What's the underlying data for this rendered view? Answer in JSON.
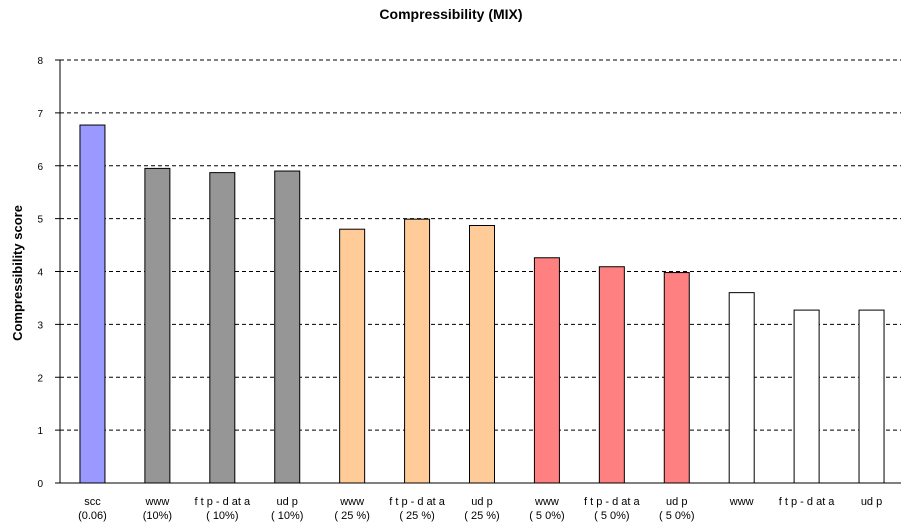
{
  "chart_data": {
    "type": "bar",
    "title": "Compressibility (MIX)",
    "xlabel": "",
    "ylabel": "Compressibility score",
    "ylim": [
      0,
      8
    ],
    "yticks": [
      0,
      1,
      2,
      3,
      4,
      5,
      6,
      7,
      8
    ],
    "grid": "horizontal-dashed",
    "legend": "none",
    "categories": [
      [
        "scc",
        "(0.06)"
      ],
      [
        "www",
        "(10%)"
      ],
      [
        "f t p - d at a",
        "( 10%)"
      ],
      [
        "ud p",
        "( 10%)"
      ],
      [
        "www",
        "( 25 %)"
      ],
      [
        "f t p - d at a",
        "( 25 %)"
      ],
      [
        "ud p",
        "( 25 %)"
      ],
      [
        "www",
        "( 5 0%)"
      ],
      [
        "f t p - d at a",
        "( 5 0%)"
      ],
      [
        "ud p",
        "( 5 0%)"
      ],
      [
        "www",
        ""
      ],
      [
        "f t p - d at a",
        ""
      ],
      [
        "ud p",
        ""
      ]
    ],
    "values": [
      6.77,
      5.95,
      5.87,
      5.9,
      4.8,
      4.99,
      4.87,
      4.26,
      4.09,
      3.98,
      3.6,
      3.27,
      3.27
    ],
    "colors": [
      "#9999ff",
      "#969696",
      "#969696",
      "#969696",
      "#ffcc99",
      "#ffcc99",
      "#ffcc99",
      "#ff8080",
      "#ff8080",
      "#ff8080",
      "#ffffff",
      "#ffffff",
      "#ffffff"
    ]
  }
}
